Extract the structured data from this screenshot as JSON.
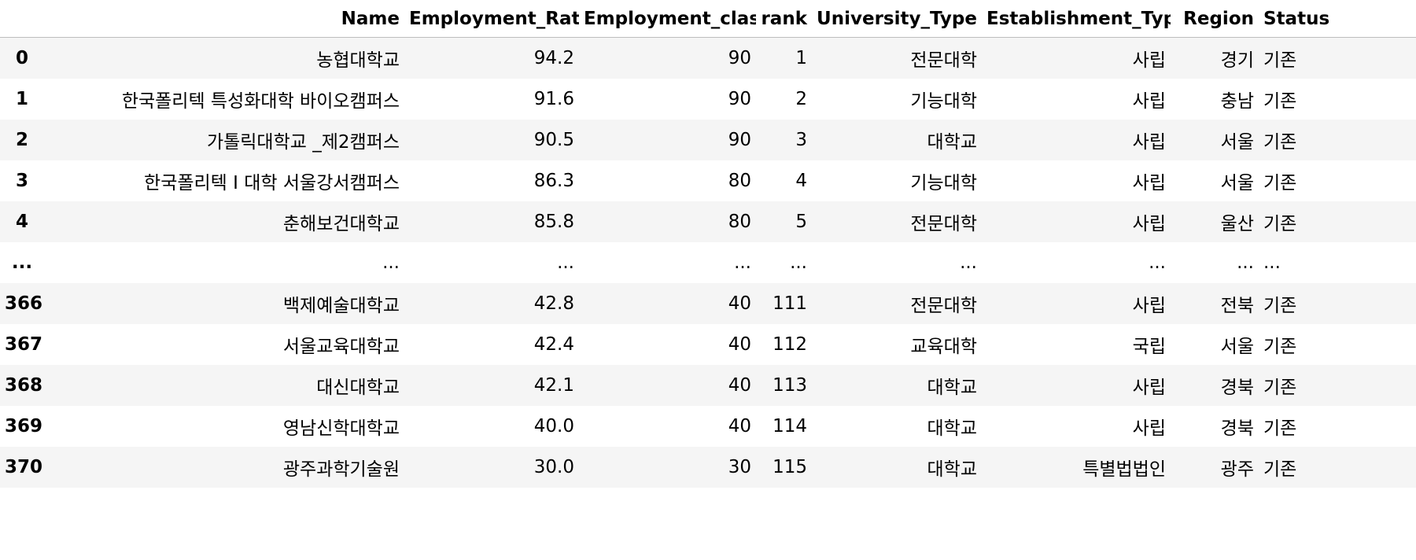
{
  "table": {
    "columns": [
      "",
      "Name",
      "Employment_Rate",
      "Employment_class",
      "rank",
      "University_Type",
      "Establishment_Type",
      "Region",
      "Status"
    ],
    "rows": [
      [
        "0",
        "농협대학교",
        "94.2",
        "90",
        "1",
        "전문대학",
        "사립",
        "경기",
        "기존"
      ],
      [
        "1",
        "한국폴리텍 특성화대학 바이오캠퍼스",
        "91.6",
        "90",
        "2",
        "기능대학",
        "사립",
        "충남",
        "기존"
      ],
      [
        "2",
        "가톨릭대학교 _제2캠퍼스",
        "90.5",
        "90",
        "3",
        "대학교",
        "사립",
        "서울",
        "기존"
      ],
      [
        "3",
        "한국폴리텍 I 대학 서울강서캠퍼스",
        "86.3",
        "80",
        "4",
        "기능대학",
        "사립",
        "서울",
        "기존"
      ],
      [
        "4",
        "춘해보건대학교",
        "85.8",
        "80",
        "5",
        "전문대학",
        "사립",
        "울산",
        "기존"
      ],
      [
        "...",
        "...",
        "...",
        "...",
        "...",
        "...",
        "...",
        "...",
        "..."
      ],
      [
        "366",
        "백제예술대학교",
        "42.8",
        "40",
        "111",
        "전문대학",
        "사립",
        "전북",
        "기존"
      ],
      [
        "367",
        "서울교육대학교",
        "42.4",
        "40",
        "112",
        "교육대학",
        "국립",
        "서울",
        "기존"
      ],
      [
        "368",
        "대신대학교",
        "42.1",
        "40",
        "113",
        "대학교",
        "사립",
        "경북",
        "기존"
      ],
      [
        "369",
        "영남신학대학교",
        "40.0",
        "40",
        "114",
        "대학교",
        "사립",
        "경북",
        "기존"
      ],
      [
        "370",
        "광주과학기술원",
        "30.0",
        "30",
        "115",
        "대학교",
        "특별법법인",
        "광주",
        "기존"
      ]
    ]
  }
}
